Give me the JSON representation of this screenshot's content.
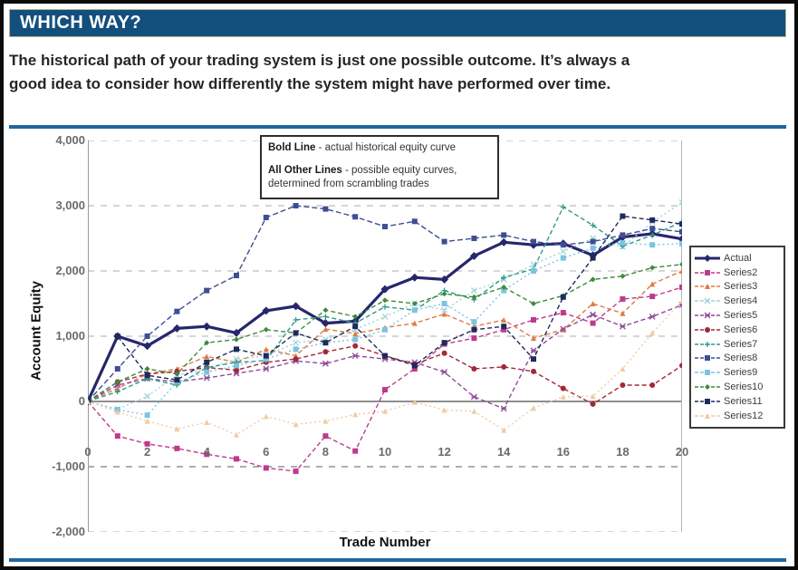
{
  "page": {
    "title": "WHICH WAY?"
  },
  "intro": {
    "line1": "The historical path of your trading system is just one possible outcome. It’s always a",
    "line2": "good idea to consider how differently the system might have performed over time."
  },
  "annotation": {
    "line1_label": "Bold Line",
    "line1_text": " - actual historical equity curve",
    "line2_label": "All Other Lines",
    "line2_text": " - possible equity curves,",
    "line3_text": "determined from scrambling trades"
  },
  "chart_data": {
    "type": "line",
    "title": "",
    "xlabel": "Trade Number",
    "ylabel": "Account Equity",
    "x_range": [
      0,
      20
    ],
    "ylim": [
      -2000,
      4000
    ],
    "grid": true,
    "legend_position": "right",
    "xticks": [
      0,
      2,
      4,
      6,
      8,
      10,
      12,
      14,
      16,
      18,
      20
    ],
    "yticks": [
      {
        "label": "4,000",
        "value": 4000
      },
      {
        "label": "3,000",
        "value": 3000
      },
      {
        "label": "2,000",
        "value": 2000
      },
      {
        "label": "1,000",
        "value": 1000
      },
      {
        "label": "0",
        "value": 0
      },
      {
        "label": "-1,000",
        "value": -1000
      },
      {
        "label": "-2,000",
        "value": -2000
      }
    ],
    "series": [
      {
        "name": "Actual",
        "color": "#26276B",
        "marker": "diamond",
        "dash": "",
        "width": 3.2,
        "values": [
          0,
          1000,
          850,
          1120,
          1150,
          1050,
          1390,
          1460,
          1200,
          1230,
          1720,
          1900,
          1870,
          2230,
          2440,
          2400,
          2420,
          2240,
          2520,
          2570,
          2490
        ]
      },
      {
        "name": "Series2",
        "color": "#BE3A8D",
        "marker": "square",
        "dash": "5 3",
        "width": 1.4,
        "values": [
          0,
          -530,
          -650,
          -720,
          -810,
          -880,
          -1020,
          -1070,
          -530,
          -760,
          180,
          500,
          880,
          970,
          1100,
          1250,
          1360,
          1200,
          1570,
          1610,
          1750
        ]
      },
      {
        "name": "Series3",
        "color": "#E07B42",
        "marker": "triangle",
        "dash": "5 3",
        "width": 1.4,
        "values": [
          0,
          200,
          420,
          500,
          690,
          600,
          800,
          700,
          1110,
          1040,
          1130,
          1200,
          1340,
          1150,
          1250,
          970,
          1100,
          1500,
          1350,
          1800,
          2000
        ]
      },
      {
        "name": "Series4",
        "color": "#9FD3D8",
        "marker": "x",
        "dash": "2 3",
        "width": 1.4,
        "values": [
          0,
          -120,
          80,
          400,
          500,
          650,
          700,
          900,
          950,
          1100,
          1300,
          1500,
          1400,
          1700,
          1870,
          2100,
          2300,
          2500,
          2370,
          2750,
          3050
        ]
      },
      {
        "name": "Series5",
        "color": "#91499B",
        "marker": "asterisk",
        "dash": "5 3",
        "width": 1.4,
        "values": [
          0,
          250,
          350,
          300,
          360,
          430,
          500,
          620,
          580,
          700,
          650,
          600,
          450,
          70,
          -110,
          780,
          1110,
          1330,
          1150,
          1300,
          1480
        ]
      },
      {
        "name": "Series6",
        "color": "#A3283A",
        "marker": "circle",
        "dash": "5 3",
        "width": 1.4,
        "values": [
          0,
          300,
          420,
          460,
          520,
          480,
          600,
          650,
          760,
          850,
          700,
          570,
          740,
          500,
          530,
          460,
          200,
          -40,
          250,
          250,
          550
        ]
      },
      {
        "name": "Series7",
        "color": "#2D9B8A",
        "marker": "plus",
        "dash": "5 3",
        "width": 1.4,
        "values": [
          0,
          150,
          350,
          250,
          520,
          600,
          625,
          1250,
          1300,
          1200,
          1450,
          1400,
          1700,
          1560,
          1900,
          2030,
          2980,
          2700,
          2380,
          2550,
          2750
        ]
      },
      {
        "name": "Series8",
        "color": "#3D4E94",
        "marker": "square",
        "dash": "6 3",
        "width": 1.4,
        "values": [
          0,
          500,
          1000,
          1380,
          1700,
          1930,
          2820,
          3000,
          2950,
          2830,
          2680,
          2760,
          2450,
          2500,
          2550,
          2450,
          2400,
          2450,
          2550,
          2650,
          2600
        ]
      },
      {
        "name": "Series9",
        "color": "#7DC3E1",
        "marker": "square",
        "dash": "2 3",
        "width": 1.4,
        "values": [
          0,
          -125,
          -210,
          300,
          450,
          550,
          650,
          800,
          900,
          950,
          1100,
          1400,
          1500,
          1220,
          1700,
          2000,
          2200,
          2350,
          2430,
          2400,
          2420
        ]
      },
      {
        "name": "Series10",
        "color": "#3F8A3C",
        "marker": "diamond",
        "dash": "5 3",
        "width": 1.4,
        "values": [
          0,
          300,
          500,
          420,
          900,
          950,
          1100,
          1050,
          1400,
          1300,
          1550,
          1500,
          1650,
          1600,
          1750,
          1500,
          1620,
          1870,
          1920,
          2050,
          2100
        ]
      },
      {
        "name": "Series11",
        "color": "#1E2A5C",
        "marker": "square",
        "dash": "5 3",
        "width": 1.4,
        "values": [
          0,
          1000,
          400,
          330,
          600,
          800,
          700,
          1050,
          900,
          1150,
          700,
          550,
          900,
          1100,
          1150,
          650,
          1600,
          2200,
          2840,
          2780,
          2720
        ]
      },
      {
        "name": "Series12",
        "color": "#F1CBA2",
        "marker": "triangle",
        "dash": "2 3",
        "width": 1.4,
        "values": [
          0,
          -160,
          -300,
          -420,
          -320,
          -510,
          -230,
          -350,
          -300,
          -200,
          -150,
          -10,
          -130,
          -150,
          -440,
          -100,
          70,
          80,
          500,
          1050,
          1540
        ]
      }
    ]
  }
}
